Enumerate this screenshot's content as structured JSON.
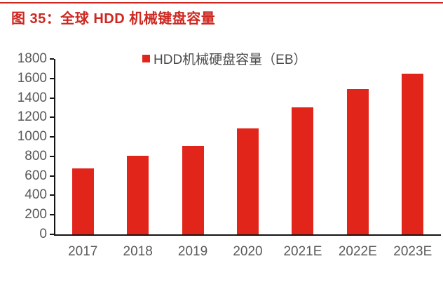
{
  "header": {
    "title": "图 35：全球 HDD 机械键盘容量"
  },
  "chart_data": {
    "type": "bar",
    "title": "",
    "legend": "HDD机械硬盘容量（EB）",
    "categories": [
      "2017",
      "2018",
      "2019",
      "2020",
      "2021E",
      "2022E",
      "2023E"
    ],
    "values": [
      680,
      810,
      910,
      1090,
      1300,
      1490,
      1650
    ],
    "xlabel": "",
    "ylabel": "",
    "ylim": [
      0,
      1800
    ],
    "ytick_step": 200,
    "grid": false,
    "legend_position": "top-center",
    "unit": "EB"
  },
  "colors": {
    "title_red": "#ce2821",
    "bar_red": "#e2251b",
    "axis_black": "#141414",
    "tick_label_gray": "#595959",
    "legend_text_gray": "#4c4c4c",
    "background": "#ffffff"
  }
}
